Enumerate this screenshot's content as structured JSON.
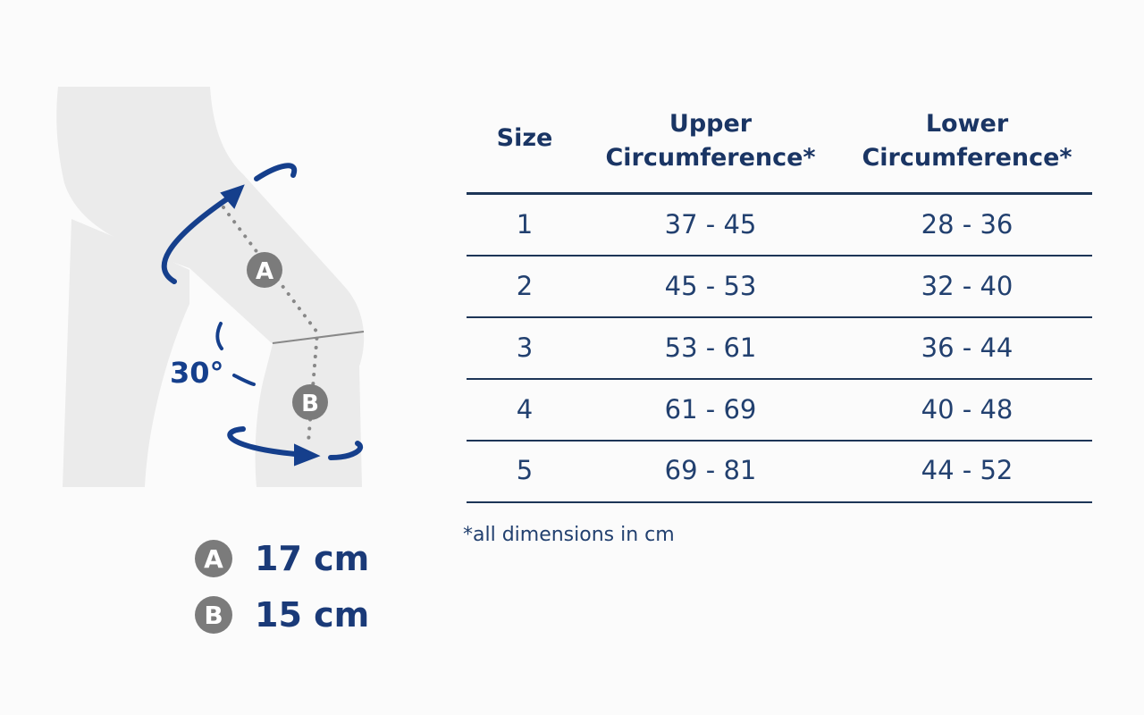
{
  "diagram": {
    "angle_label": "30°",
    "marker_a": "A",
    "marker_b": "B"
  },
  "legend": [
    {
      "marker": "A",
      "value": "17 cm"
    },
    {
      "marker": "B",
      "value": "15 cm"
    }
  ],
  "table": {
    "headers": [
      {
        "line1": "Size",
        "line2": ""
      },
      {
        "line1": "Upper",
        "line2": "Circumference*"
      },
      {
        "line1": "Lower",
        "line2": "Circumference*"
      }
    ],
    "rows": [
      {
        "size": "1",
        "upper": "37 - 45",
        "lower": "28 - 36"
      },
      {
        "size": "2",
        "upper": "45 - 53",
        "lower": "32 - 40"
      },
      {
        "size": "3",
        "upper": "53 - 61",
        "lower": "36 - 44"
      },
      {
        "size": "4",
        "upper": "61 - 69",
        "lower": "40 - 48"
      },
      {
        "size": "5",
        "upper": "69 - 81",
        "lower": "44 - 52"
      }
    ]
  },
  "footnote": "*all dimensions in cm",
  "colors": {
    "navy": "#1d3a6a",
    "arrow": "#153f8c",
    "marker": "#7b7b7b",
    "leg": "#ebebeb"
  }
}
